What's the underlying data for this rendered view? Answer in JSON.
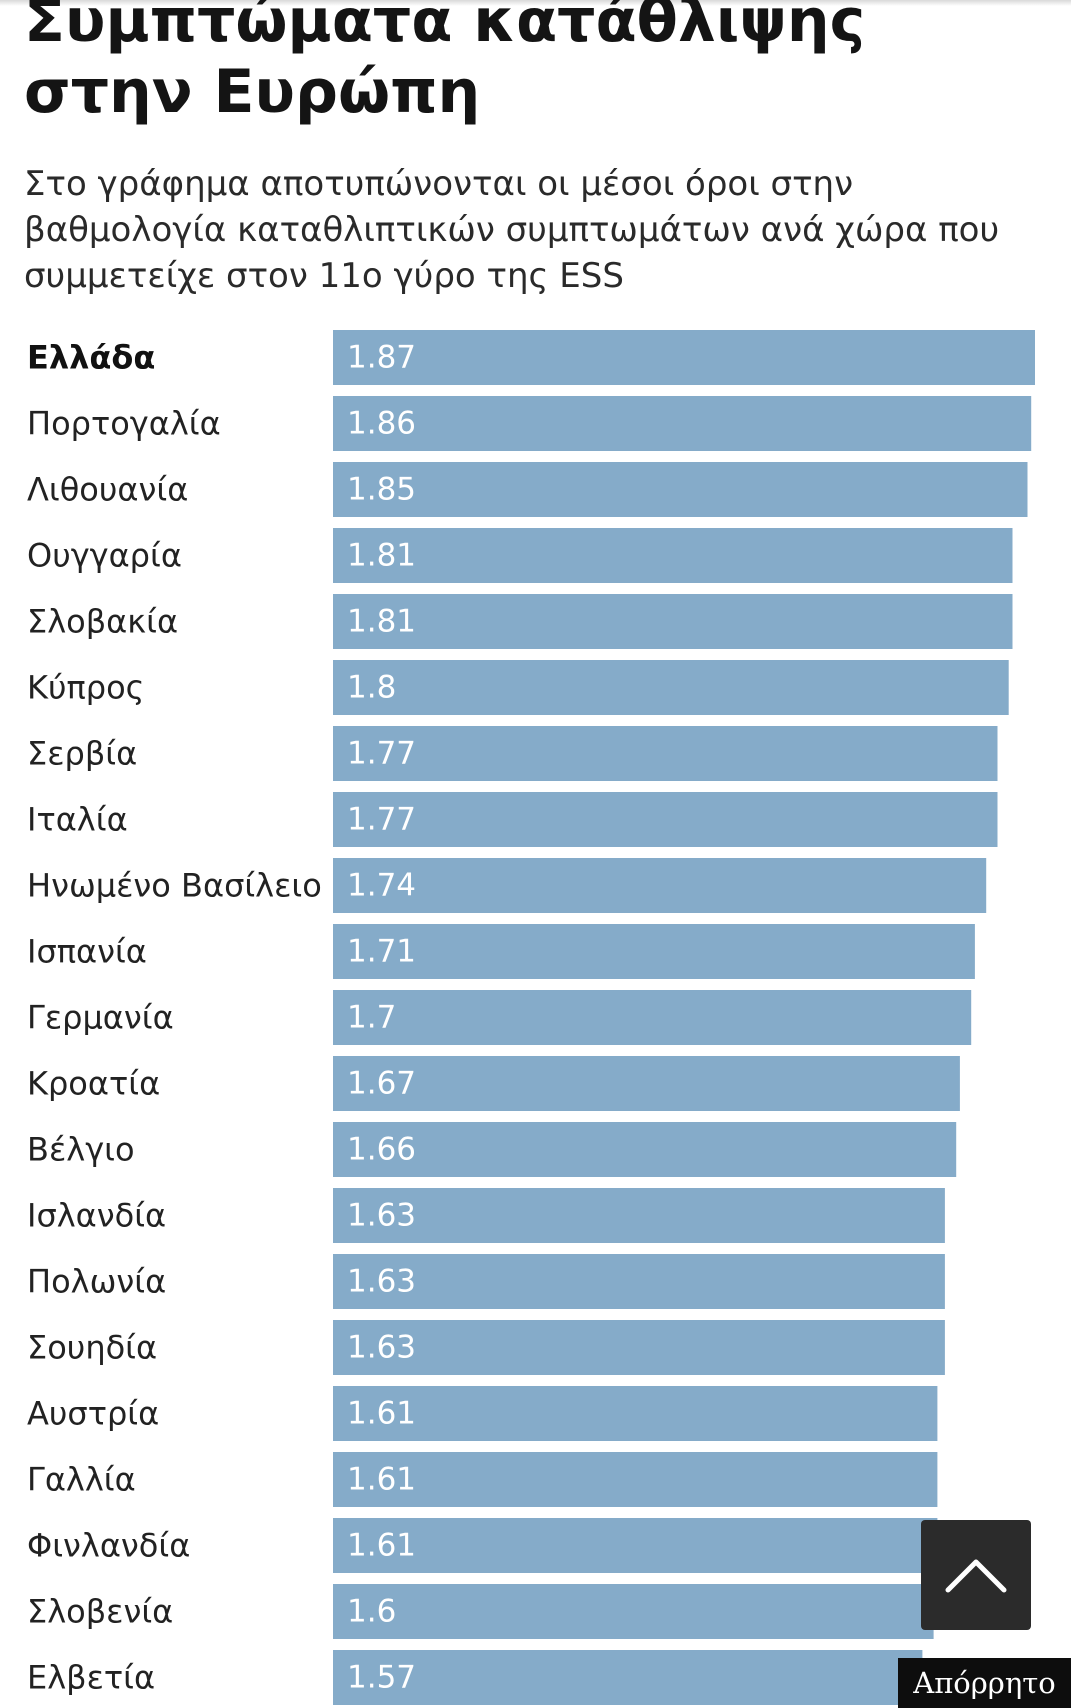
{
  "header": {
    "title": "Συμπτώματα κατάθλιψης στην Ευρώπη",
    "subtitle": "Στο γράφημα αποτυπώνονται οι μέσοι όροι στην βαθμολογία καταθλιπτικών συμπτωμάτων ανά χώρα που συμμετείχε στον 11ο γύρο της ESS"
  },
  "chart_data": {
    "type": "bar",
    "orientation": "horizontal",
    "title": "Συμπτώματα κατάθλιψης στην Ευρώπη",
    "subtitle": "Στο γράφημα αποτυπώνονται οι μέσοι όροι στην βαθμολογία καταθλιπτικών συμπτωμάτων ανά χώρα που συμμετείχε στον 11ο γύρο της ESS",
    "categories": [
      "Ελλάδα",
      "Πορτογαλία",
      "Λιθουανία",
      "Ουγγαρία",
      "Σλοβακία",
      "Κύπρος",
      "Σερβία",
      "Ιταλία",
      "Ηνωμένο Βασίλειο",
      "Ισπανία",
      "Γερμανία",
      "Κροατία",
      "Βέλγιο",
      "Ισλανδία",
      "Πολωνία",
      "Σουηδία",
      "Αυστρία",
      "Γαλλία",
      "Φινλανδία",
      "Σλοβενία",
      "Ελβετία"
    ],
    "values": [
      1.87,
      1.86,
      1.85,
      1.81,
      1.81,
      1.8,
      1.77,
      1.77,
      1.74,
      1.71,
      1.7,
      1.67,
      1.66,
      1.63,
      1.63,
      1.63,
      1.61,
      1.61,
      1.61,
      1.6,
      1.57
    ],
    "value_labels": [
      "1.87",
      "1.86",
      "1.85",
      "1.81",
      "1.81",
      "1.8",
      "1.77",
      "1.77",
      "1.74",
      "1.71",
      "1.7",
      "1.67",
      "1.66",
      "1.63",
      "1.63",
      "1.63",
      "1.61",
      "1.61",
      "1.61",
      "1.6",
      "1.57"
    ],
    "highlighted_category": "Ελλάδα",
    "xlim": [
      0,
      1.87
    ],
    "bar_color": "#85abc9",
    "xlabel": "",
    "ylabel": "",
    "grid": false
  },
  "controls": {
    "scroll_top_icon": "chevron-up-icon"
  },
  "watermark": {
    "text": "Απόρρητο"
  }
}
